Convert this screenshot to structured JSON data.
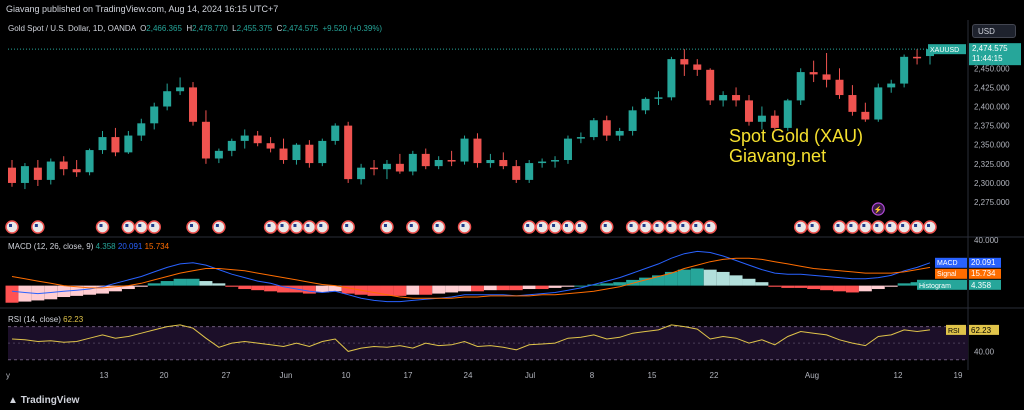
{
  "publisher_line": "Giavang published on TradingView.com, Aug 14, 2024 16:15 UTC+7",
  "currency": "USD",
  "main_legend": {
    "symbol": "Gold Spot / U.S. Dollar, 1D, OANDA",
    "o_label": "O",
    "o": "2,466.365",
    "h_label": "H",
    "h": "2,478.770",
    "l_label": "L",
    "l": "2,455.375",
    "c_label": "C",
    "c": "2,474.575",
    "change": "+9.520 (+0.39%)"
  },
  "price_tag": {
    "symbol": "XAUUSD",
    "price": "2,474.575",
    "countdown": "11:44:15"
  },
  "watermark": {
    "line1": "Spot Gold (XAU)",
    "line2": "Giavang.net"
  },
  "macd_legend": {
    "name": "MACD (12, 26, close, 9)",
    "hist": "4.358",
    "macd": "20.091",
    "signal": "15.734"
  },
  "macd_tags": {
    "macd_label": "MACD",
    "macd_value": "20.091",
    "signal_label": "Signal",
    "signal_value": "15.734",
    "hist_label": "Histogram",
    "hist_value": "4.358"
  },
  "rsi_legend": {
    "name": "RSI (14, close)",
    "value": "62.23"
  },
  "rsi_tag": {
    "label": "RSI",
    "value": "62.23"
  },
  "footer_brand": "TradingView",
  "colors": {
    "up": "#26a69a",
    "down": "#ef5350",
    "macd": "#2962ff",
    "signal": "#ff6d00",
    "rsi": "#e0c44a",
    "rsi_bg": "#1c0f29",
    "bg": "#000000"
  },
  "chart_data": {
    "type": "candlestick",
    "price_axis": {
      "min": 2262,
      "max": 2487,
      "ticks": [
        "2,475.000",
        "2,450.000",
        "2,425.000",
        "2,400.000",
        "2,375.000",
        "2,350.000",
        "2,325.000",
        "2,300.000",
        "2,275.000"
      ],
      "tick_values": [
        2475,
        2450,
        2425,
        2400,
        2375,
        2350,
        2325,
        2300,
        2275
      ]
    },
    "x_labels": [
      "y",
      "13",
      "20",
      "27",
      "Jun",
      "10",
      "17",
      "24",
      "Jul",
      "8",
      "15",
      "22",
      "Aug",
      "12",
      "19"
    ],
    "ohlc": [
      [
        2320,
        2330,
        2295,
        2300
      ],
      [
        2300,
        2326,
        2292,
        2322
      ],
      [
        2320,
        2330,
        2296,
        2304
      ],
      [
        2304,
        2332,
        2298,
        2328
      ],
      [
        2328,
        2335,
        2310,
        2318
      ],
      [
        2318,
        2330,
        2308,
        2314
      ],
      [
        2314,
        2345,
        2310,
        2343
      ],
      [
        2343,
        2368,
        2338,
        2360
      ],
      [
        2360,
        2372,
        2335,
        2340
      ],
      [
        2340,
        2368,
        2338,
        2362
      ],
      [
        2362,
        2384,
        2355,
        2378
      ],
      [
        2378,
        2405,
        2370,
        2400
      ],
      [
        2400,
        2430,
        2395,
        2420
      ],
      [
        2420,
        2438,
        2415,
        2425
      ],
      [
        2425,
        2432,
        2375,
        2380
      ],
      [
        2380,
        2395,
        2325,
        2332
      ],
      [
        2332,
        2345,
        2326,
        2342
      ],
      [
        2342,
        2358,
        2335,
        2355
      ],
      [
        2355,
        2370,
        2345,
        2362
      ],
      [
        2362,
        2368,
        2348,
        2352
      ],
      [
        2352,
        2360,
        2340,
        2345
      ],
      [
        2345,
        2358,
        2325,
        2330
      ],
      [
        2330,
        2352,
        2324,
        2350
      ],
      [
        2350,
        2356,
        2320,
        2326
      ],
      [
        2326,
        2358,
        2322,
        2355
      ],
      [
        2355,
        2378,
        2350,
        2375
      ],
      [
        2375,
        2380,
        2300,
        2305
      ],
      [
        2305,
        2325,
        2298,
        2320
      ],
      [
        2320,
        2330,
        2310,
        2318
      ],
      [
        2318,
        2330,
        2305,
        2325
      ],
      [
        2325,
        2338,
        2312,
        2315
      ],
      [
        2315,
        2342,
        2310,
        2338
      ],
      [
        2338,
        2345,
        2318,
        2322
      ],
      [
        2322,
        2335,
        2318,
        2330
      ],
      [
        2330,
        2342,
        2322,
        2328
      ],
      [
        2328,
        2362,
        2324,
        2358
      ],
      [
        2358,
        2365,
        2320,
        2326
      ],
      [
        2326,
        2338,
        2320,
        2330
      ],
      [
        2330,
        2340,
        2318,
        2322
      ],
      [
        2322,
        2330,
        2300,
        2304
      ],
      [
        2304,
        2330,
        2300,
        2326
      ],
      [
        2326,
        2332,
        2320,
        2328
      ],
      [
        2328,
        2335,
        2320,
        2330
      ],
      [
        2330,
        2362,
        2325,
        2358
      ],
      [
        2358,
        2366,
        2352,
        2360
      ],
      [
        2360,
        2385,
        2356,
        2382
      ],
      [
        2382,
        2388,
        2355,
        2362
      ],
      [
        2362,
        2372,
        2355,
        2368
      ],
      [
        2368,
        2400,
        2362,
        2395
      ],
      [
        2395,
        2412,
        2390,
        2410
      ],
      [
        2410,
        2420,
        2402,
        2412
      ],
      [
        2412,
        2465,
        2408,
        2462
      ],
      [
        2462,
        2475,
        2440,
        2455
      ],
      [
        2455,
        2462,
        2440,
        2448
      ],
      [
        2448,
        2450,
        2402,
        2408
      ],
      [
        2408,
        2420,
        2400,
        2415
      ],
      [
        2415,
        2425,
        2400,
        2408
      ],
      [
        2408,
        2415,
        2375,
        2380
      ],
      [
        2380,
        2400,
        2370,
        2388
      ],
      [
        2388,
        2395,
        2368,
        2372
      ],
      [
        2372,
        2410,
        2368,
        2408
      ],
      [
        2408,
        2450,
        2402,
        2445
      ],
      [
        2445,
        2460,
        2432,
        2442
      ],
      [
        2442,
        2470,
        2425,
        2435
      ],
      [
        2435,
        2450,
        2410,
        2415
      ],
      [
        2415,
        2428,
        2388,
        2393
      ],
      [
        2393,
        2405,
        2380,
        2383
      ],
      [
        2383,
        2430,
        2380,
        2425
      ],
      [
        2425,
        2435,
        2418,
        2430
      ],
      [
        2430,
        2468,
        2425,
        2465
      ],
      [
        2465,
        2475,
        2455,
        2463
      ],
      [
        2466,
        2479,
        2455,
        2475
      ]
    ],
    "macd": {
      "axis_label": "40.000",
      "hist": [
        -15,
        -14,
        -13,
        -12,
        -10,
        -9,
        -8,
        -7,
        -5,
        -3,
        -1,
        2,
        4,
        6,
        6,
        4,
        2,
        -1,
        -3,
        -4,
        -5,
        -6,
        -6,
        -7,
        -6,
        -5,
        -7,
        -8,
        -9,
        -9,
        -9,
        -8,
        -8,
        -7,
        -6,
        -5,
        -5,
        -4,
        -4,
        -4,
        -3,
        -3,
        -2,
        -1,
        0,
        1,
        2,
        3,
        5,
        7,
        9,
        12,
        14,
        15,
        14,
        12,
        9,
        6,
        3,
        -1,
        -2,
        -2,
        -3,
        -4,
        -5,
        -6,
        -5,
        -3,
        -1,
        2,
        3,
        4
      ],
      "macd": [
        -5,
        -6,
        -7,
        -6,
        -5,
        -4,
        -3,
        -1,
        2,
        5,
        8,
        12,
        16,
        19,
        20,
        18,
        14,
        10,
        7,
        4,
        2,
        -1,
        -3,
        -5,
        -6,
        -5,
        -8,
        -11,
        -13,
        -14,
        -14,
        -13,
        -12,
        -11,
        -10,
        -8,
        -8,
        -8,
        -8,
        -9,
        -8,
        -7,
        -6,
        -4,
        -2,
        1,
        4,
        7,
        11,
        15,
        19,
        24,
        28,
        30,
        29,
        26,
        22,
        18,
        14,
        11,
        10,
        10,
        9,
        8,
        7,
        6,
        6,
        7,
        9,
        13,
        16,
        20
      ],
      "signal": [
        8,
        6,
        4,
        2,
        0,
        -1,
        -2,
        -2,
        -1,
        0,
        2,
        5,
        8,
        11,
        13,
        15,
        15,
        14,
        13,
        11,
        9,
        7,
        5,
        3,
        1,
        0,
        -2,
        -4,
        -6,
        -8,
        -10,
        -11,
        -11,
        -11,
        -11,
        -10,
        -10,
        -9,
        -9,
        -9,
        -9,
        -8,
        -8,
        -7,
        -6,
        -5,
        -3,
        -1,
        2,
        5,
        8,
        11,
        15,
        18,
        21,
        23,
        24,
        24,
        23,
        21,
        19,
        17,
        15,
        14,
        13,
        12,
        11,
        11,
        11,
        12,
        14,
        16
      ]
    },
    "rsi": {
      "axis_label": "40.00",
      "levels": [
        70,
        30
      ],
      "values": [
        55,
        54,
        52,
        53,
        51,
        52,
        56,
        60,
        56,
        58,
        62,
        66,
        70,
        72,
        68,
        56,
        45,
        50,
        52,
        50,
        48,
        46,
        50,
        46,
        52,
        55,
        40,
        44,
        46,
        45,
        47,
        44,
        50,
        47,
        48,
        52,
        46,
        47,
        45,
        42,
        48,
        49,
        50,
        56,
        57,
        60,
        55,
        57,
        62,
        64,
        66,
        72,
        70,
        67,
        55,
        58,
        56,
        50,
        54,
        48,
        58,
        64,
        62,
        60,
        54,
        50,
        47,
        58,
        60,
        66,
        64,
        66
      ]
    }
  }
}
